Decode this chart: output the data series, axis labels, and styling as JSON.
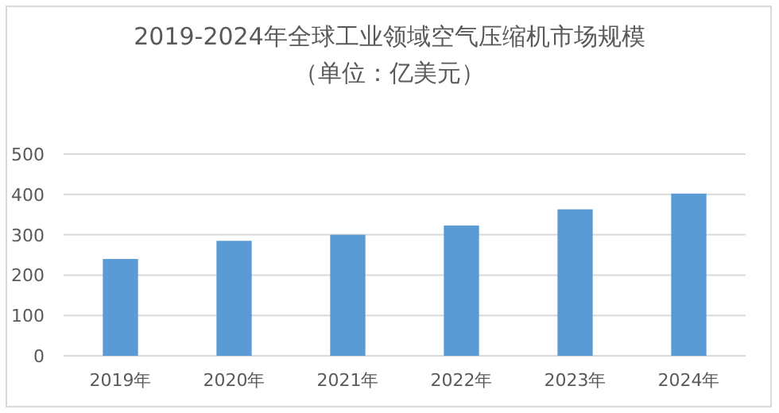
{
  "chart_data": {
    "type": "bar",
    "title": "2019-2024年全球工业领域空气压缩机市场规模",
    "subtitle": "（单位：亿美元）",
    "categories": [
      "2019年",
      "2020年",
      "2021年",
      "2022年",
      "2023年",
      "2024年"
    ],
    "values": [
      240,
      285,
      300,
      323,
      363,
      402
    ],
    "color": "#5b9bd5",
    "ylim": [
      0,
      500
    ],
    "yticks": [
      0,
      100,
      200,
      300,
      400,
      500
    ],
    "grid": "y",
    "legend": false
  }
}
